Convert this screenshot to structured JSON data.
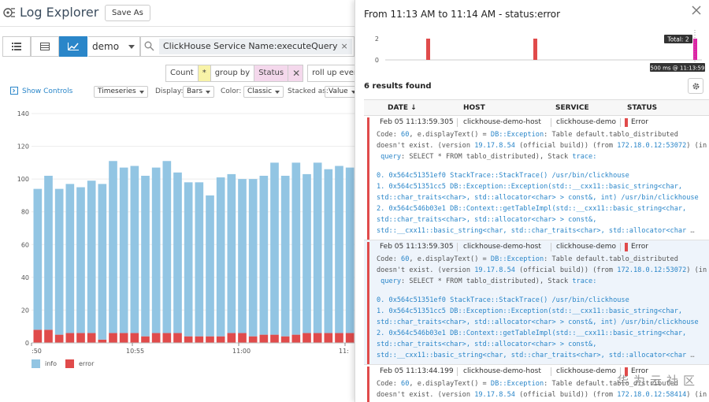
{
  "app": {
    "title": "Log Explorer",
    "save_as": "Save As"
  },
  "query": {
    "source": "demo",
    "filter": "ClickHouse Service Name:executeQuery",
    "filter_remove": "×",
    "agg": {
      "measure": "Count",
      "star": "*",
      "group_by": "group by",
      "group_field": "Status",
      "remove": "✕",
      "rollup": "roll up every"
    }
  },
  "controls": {
    "show_controls": "Show Controls",
    "viz": "Timeseries",
    "display_label": "Display:",
    "display": "Bars",
    "color_label": "Color:",
    "color": "Classic",
    "stacked_label": "Stacked as:",
    "stacked": "Value"
  },
  "chart_data": {
    "type": "bar",
    "stacked": true,
    "y_ticks": [
      "140",
      "120",
      "100",
      "80",
      "60",
      "40",
      "20",
      "0"
    ],
    "ylim": [
      0,
      140
    ],
    "x_ticks": [
      ":50",
      "10:55",
      "11:00",
      "11:"
    ],
    "series": [
      {
        "name": "info",
        "color": "#92c5e3",
        "values": [
          86,
          94,
          89,
          91,
          89,
          93,
          95,
          105,
          101,
          102,
          98,
          101,
          105,
          98,
          94,
          94,
          86,
          97,
          97,
          94,
          96,
          97,
          105,
          98,
          105,
          97,
          104,
          100,
          102,
          101
        ]
      },
      {
        "name": "error",
        "color": "#e04b4b",
        "values": [
          8,
          8,
          5,
          6,
          6,
          6,
          2,
          6,
          6,
          6,
          4,
          6,
          6,
          6,
          4,
          4,
          4,
          4,
          6,
          6,
          4,
          5,
          5,
          4,
          5,
          6,
          6,
          6,
          6,
          6
        ]
      }
    ],
    "legend": [
      "info",
      "error"
    ]
  },
  "panel": {
    "title": "From 11:13 AM to 11:14 AM - status:error",
    "mini_chart": {
      "y_ticks": [
        "2",
        "0"
      ],
      "tooltip_total": "Total: 2",
      "tooltip_time": "500 ms @ 11:13:59"
    },
    "results_found": "6 results found",
    "columns": {
      "date": "DATE ↓",
      "host": "HOST",
      "service": "SERVICE",
      "status": "STATUS"
    },
    "rows": [
      {
        "date": "Feb 05 11:13:59.305",
        "host": "clickhouse-demo-host",
        "service": "clickhouse-demo",
        "status": "Error",
        "l1a": "Code: ",
        "l1b": "60",
        "l1c": ", e.displayText() = ",
        "l1d": "DB::Exception",
        "l1e": ": Table default.tablo_distributed",
        "l2a": "doesn't exist. (version ",
        "l2b": "19.17.8.54",
        "l2c": " (official build)) (from ",
        "l2d": "172.18.0.12:53072",
        "l2e": ") (in",
        "l3a": " query",
        "l3b": ": SELECT * FROM tablo_distributed), Stack ",
        "l3c": "trace:",
        "t0": "0. 0x564c51351ef0 StackTrace::StackTrace() /usr/bin/clickhouse",
        "t1": "1. 0x564c51351cc5 DB::Exception::Exception(std::__cxx11::basic_string<char,",
        "t1b": "std::char_traits<char>, std::allocator<char> > const&, int) /usr/bin/clickhouse",
        "t2": "2. 0x564c546b03e1 DB::Context::getTableImpl(std::__cxx11::basic_string<char,",
        "t2b": "std::char_traits<char>, std::allocator<char> > const&,",
        "t2c": "std::__cxx11::basic_string<char, std::char_traits<char>, std::allocator<char",
        "ellipsis": "…"
      },
      {
        "date": "Feb 05 11:13:59.305",
        "host": "clickhouse-demo-host",
        "service": "clickhouse-demo",
        "status": "Error",
        "l1a": "Code: ",
        "l1b": "60",
        "l1c": ", e.displayText() = ",
        "l1d": "DB::Exception",
        "l1e": ": Table default.tablo_distributed",
        "l2a": "doesn't exist. (version ",
        "l2b": "19.17.8.54",
        "l2c": " (official build)) (from ",
        "l2d": "172.18.0.12:53072",
        "l2e": ") (in",
        "l3a": " query",
        "l3b": ": SELECT * FROM tablo_distributed), Stack ",
        "l3c": "trace:",
        "t0": "0. 0x564c51351ef0 StackTrace::StackTrace() /usr/bin/clickhouse",
        "t1": "1. 0x564c51351cc5 DB::Exception::Exception(std::__cxx11::basic_string<char,",
        "t1b": "std::char_traits<char>, std::allocator<char> > const&, int) /usr/bin/clickhouse",
        "t2": "2. 0x564c546b03e1 DB::Context::getTableImpl(std::__cxx11::basic_string<char,",
        "t2b": "std::char_traits<char>, std::allocator<char> > const&,",
        "t2c": "std::__cxx11::basic_string<char, std::char_traits<char>, std::allocator<char",
        "ellipsis": "…"
      },
      {
        "date": "Feb 05 11:13:44.199",
        "host": "clickhouse-demo-host",
        "service": "clickhouse-demo",
        "status": "Error",
        "l1a": "Code: ",
        "l1b": "60",
        "l1c": ", e.displayText() = ",
        "l1d": "DB::Exception",
        "l1e": ": Table default.tablo_distributed",
        "l2a": "doesn't exist. (version ",
        "l2b": "19.17.8.54",
        "l2c": " (official build)) (from ",
        "l2d": "172.18.0.12:58414",
        "l2e": ") (in"
      }
    ]
  },
  "watermark": "华为云社区"
}
